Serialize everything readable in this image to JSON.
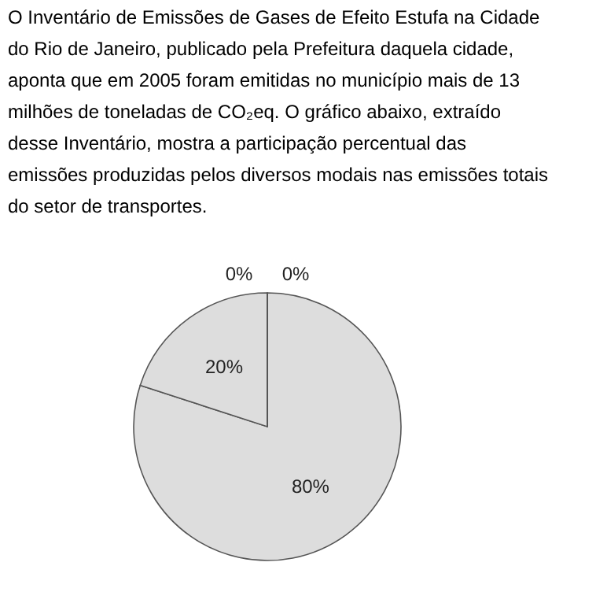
{
  "chart_data": {
    "type": "pie",
    "annotations": [
      "O Inventário de Emissões de Gases de Efeito Estufa na Cidade do Rio de Janeiro, publicado pela Prefeitura daquela cidade, aponta que em 2005 foram emitidas no município mais de 13 milhões de toneladas de CO₂eq. O gráfico abaixo, extraído desse Inventário, mostra a participação percentual das emissões produzidas pelos diversos modais nas emissões totais do setor de transportes."
    ],
    "categories": [
      null,
      null,
      null,
      null
    ],
    "values": [
      80,
      20,
      0,
      0
    ],
    "value_labels": [
      "80%",
      "20%",
      "0%",
      "0%"
    ],
    "colors": [
      "#dddddd",
      "#dddddd",
      "#dddddd",
      "#dddddd"
    ],
    "legend": false
  }
}
